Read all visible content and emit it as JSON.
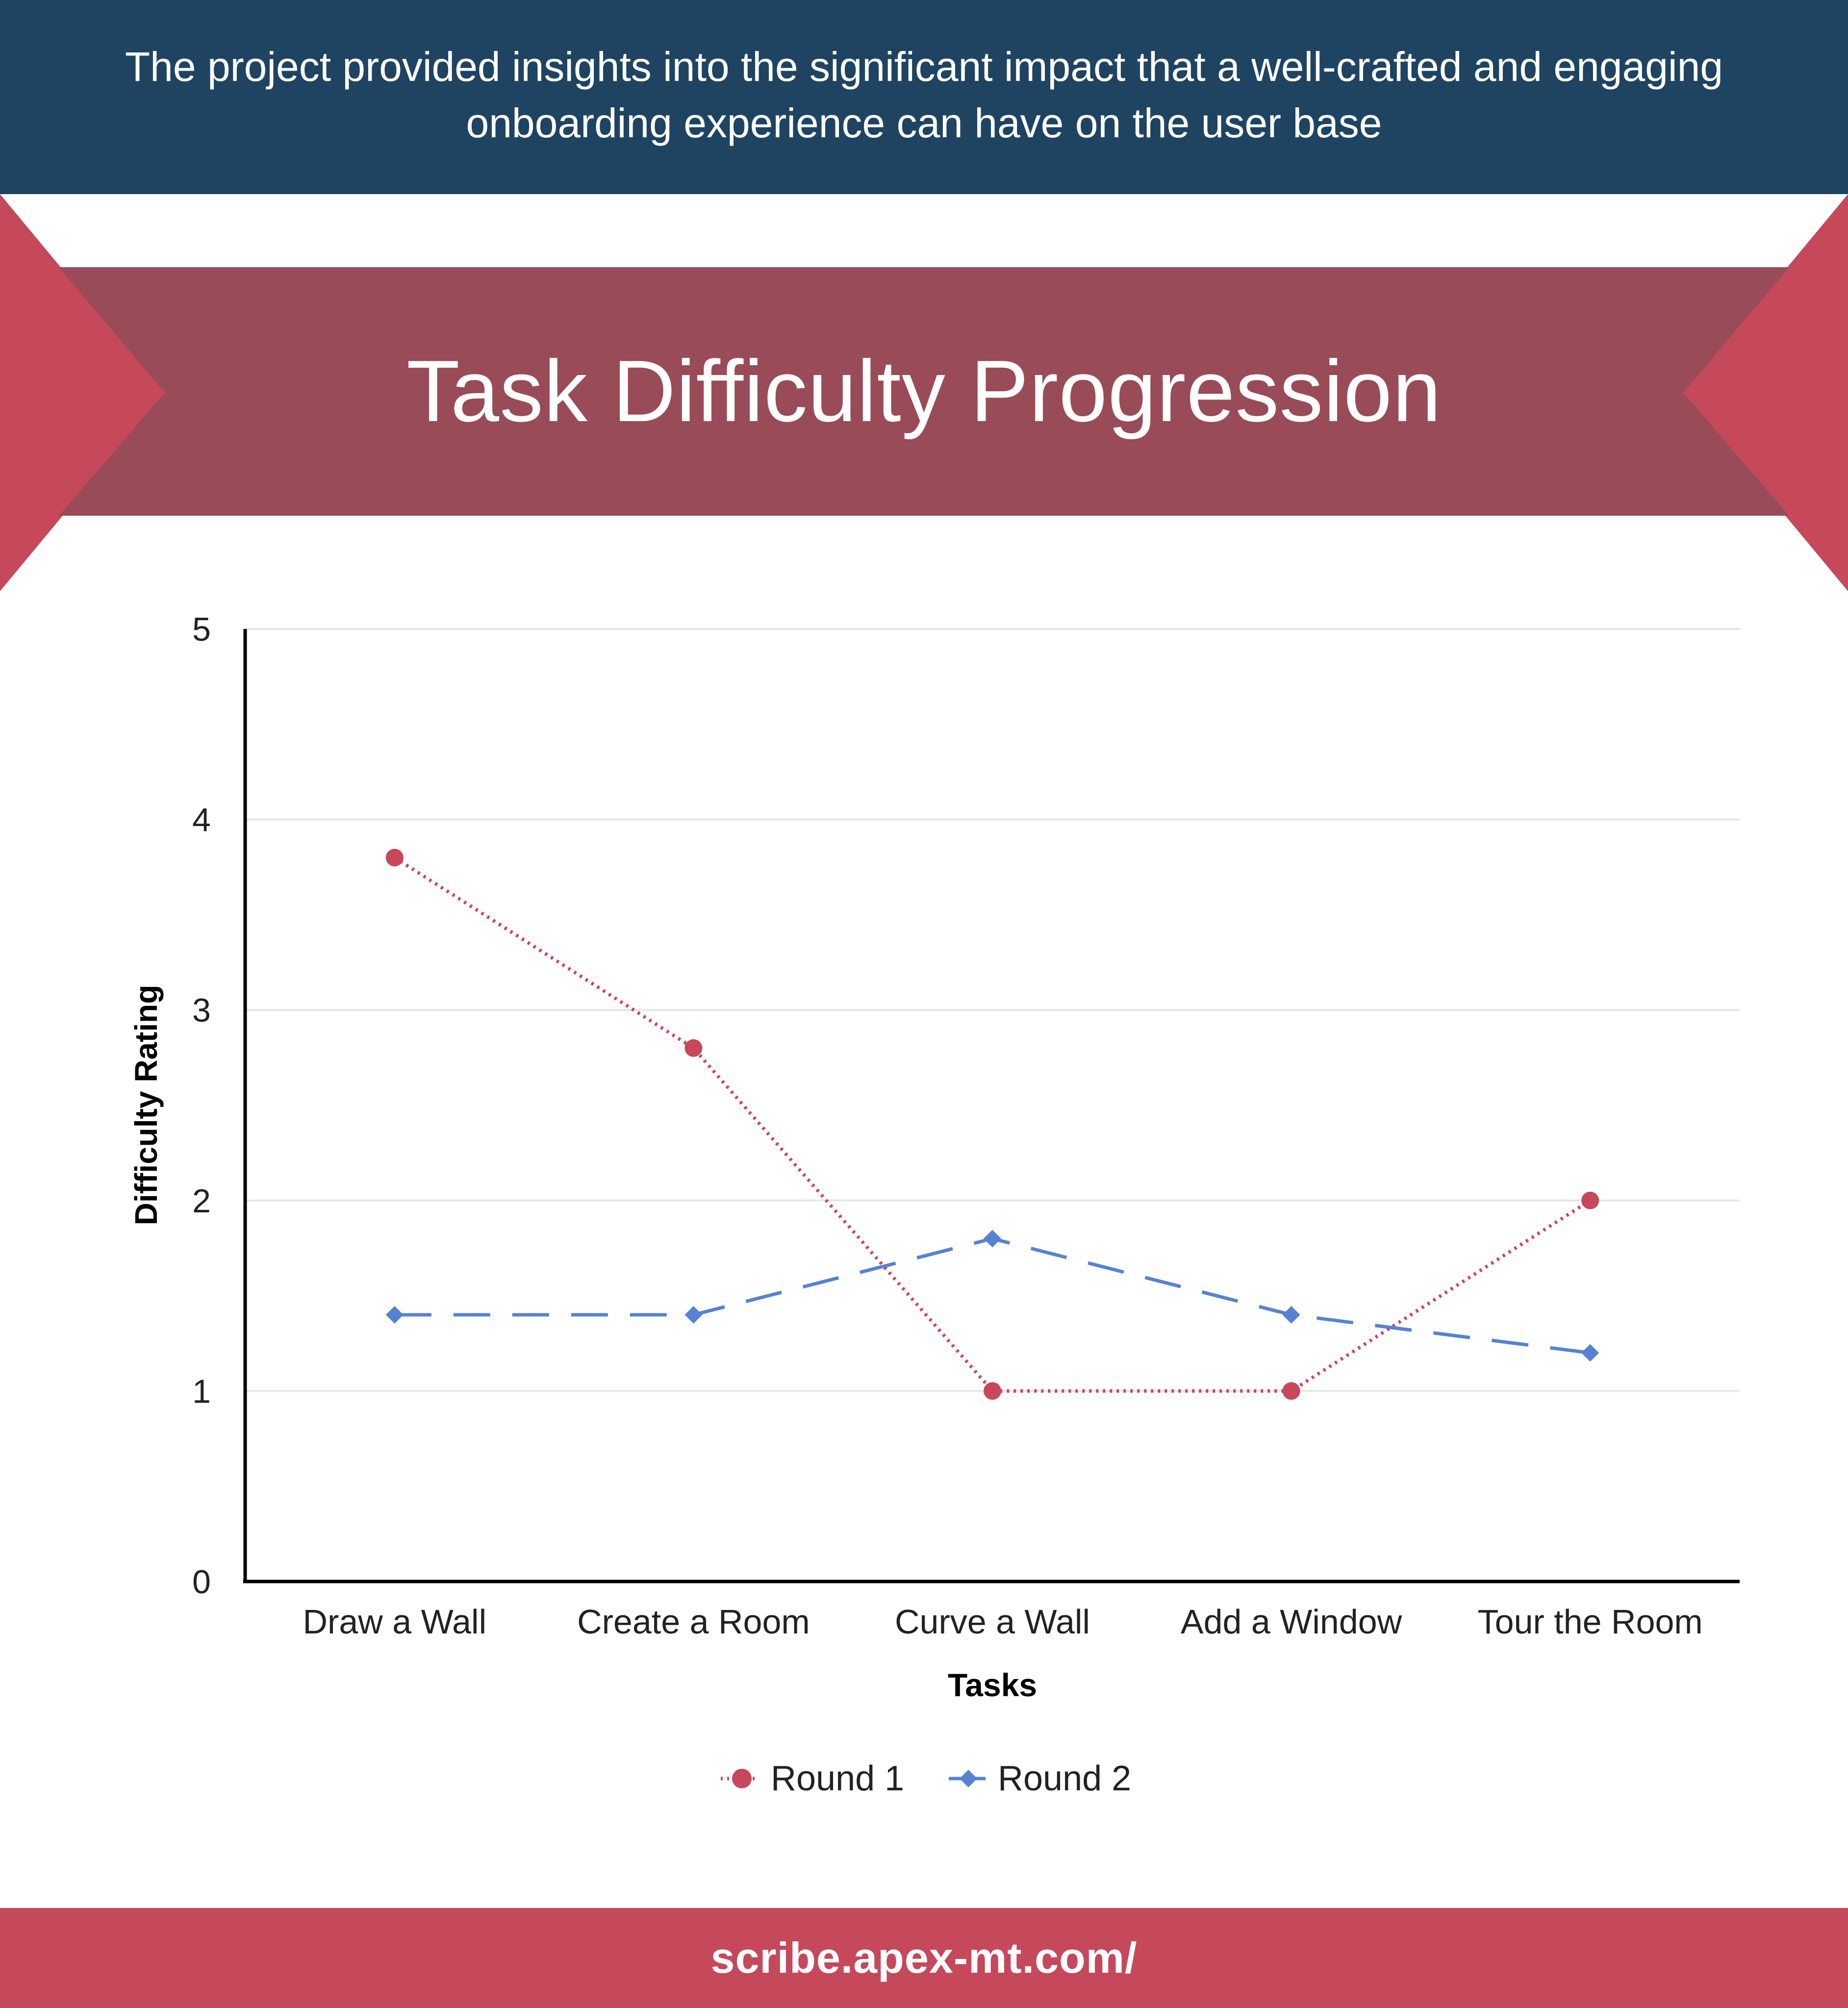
{
  "header": {
    "text": "The project provided insights into the significant impact that a well-crafted and engaging onboarding experience can have on the user base"
  },
  "colors": {
    "header_bg": "#1f4462",
    "ribbon_band": "#994b58",
    "ribbon_tips": "#c5485b",
    "footer_bg": "#c5485b",
    "round1": "#c9475a",
    "round2": "#5782d2"
  },
  "chart_data": {
    "type": "line",
    "title": "Task Difficulty Progression",
    "xlabel": "Tasks",
    "ylabel": "Difficulty Rating",
    "categories": [
      "Draw a Wall",
      "Create a Room",
      "Curve a Wall",
      "Add a Window",
      "Tour the Room"
    ],
    "ylim": [
      0,
      5
    ],
    "yticks": [
      0,
      1,
      2,
      3,
      4,
      5
    ],
    "grid": true,
    "legend_position": "bottom-center",
    "series": [
      {
        "name": "Round 1",
        "values": [
          3.8,
          2.8,
          1.0,
          1.0,
          2.0
        ],
        "marker": "circle",
        "line_style": "dotted"
      },
      {
        "name": "Round 2",
        "values": [
          1.4,
          1.4,
          1.8,
          1.4,
          1.2
        ],
        "marker": "diamond",
        "line_style": "dashed"
      }
    ]
  },
  "footer": {
    "url": "scribe.apex-mt.com/"
  }
}
